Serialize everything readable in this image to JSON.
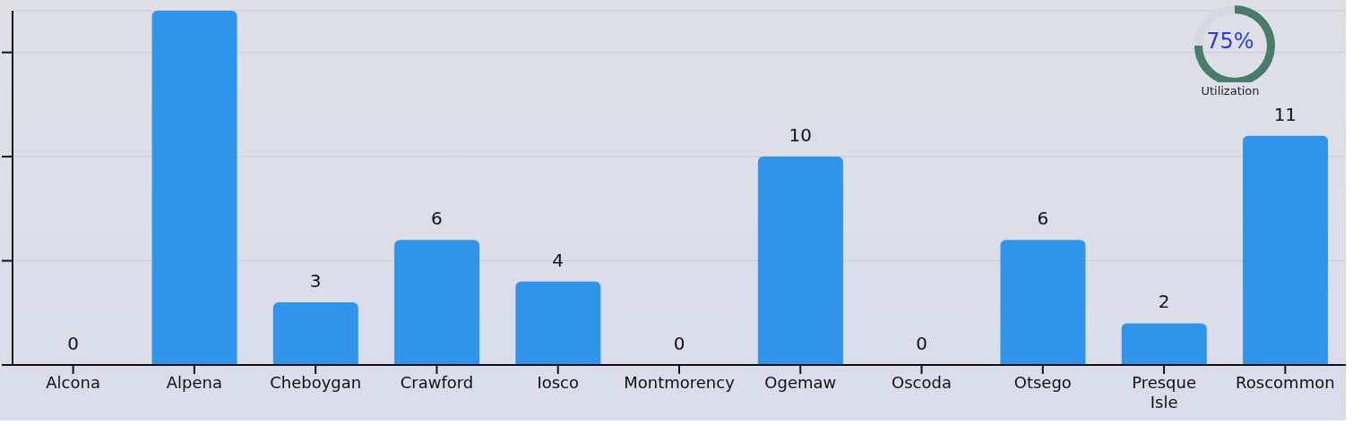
{
  "chart_data": [
    {
      "type": "bar",
      "categories": [
        "Alcona",
        "Alpena",
        "Cheboygan",
        "Crawford",
        "Iosco",
        "Montmorency",
        "Ogemaw",
        "Oscoda",
        "Otsego",
        "Presque Isle",
        "Roscommon"
      ],
      "values": [
        0,
        17,
        3,
        6,
        4,
        0,
        10,
        0,
        6,
        2,
        11
      ],
      "value_labels": [
        "0",
        null,
        "3",
        "6",
        "4",
        "0",
        "10",
        "0",
        "6",
        "2",
        "11"
      ],
      "color": "#3095ea",
      "ylim": [
        0,
        17
      ],
      "yticks": [
        {
          "value": 0,
          "label": null
        },
        {
          "value": 5,
          "label": null
        },
        {
          "value": 10,
          "label": null
        },
        {
          "value": 15,
          "label": null
        }
      ],
      "grid": "y"
    },
    {
      "type": "donut",
      "title": "Utilization",
      "categories": [
        null,
        null
      ],
      "values": [
        75,
        25
      ],
      "colors": [
        "#4a7c6a",
        "#d3d8e2"
      ],
      "annotations": [
        "75%"
      ]
    }
  ]
}
